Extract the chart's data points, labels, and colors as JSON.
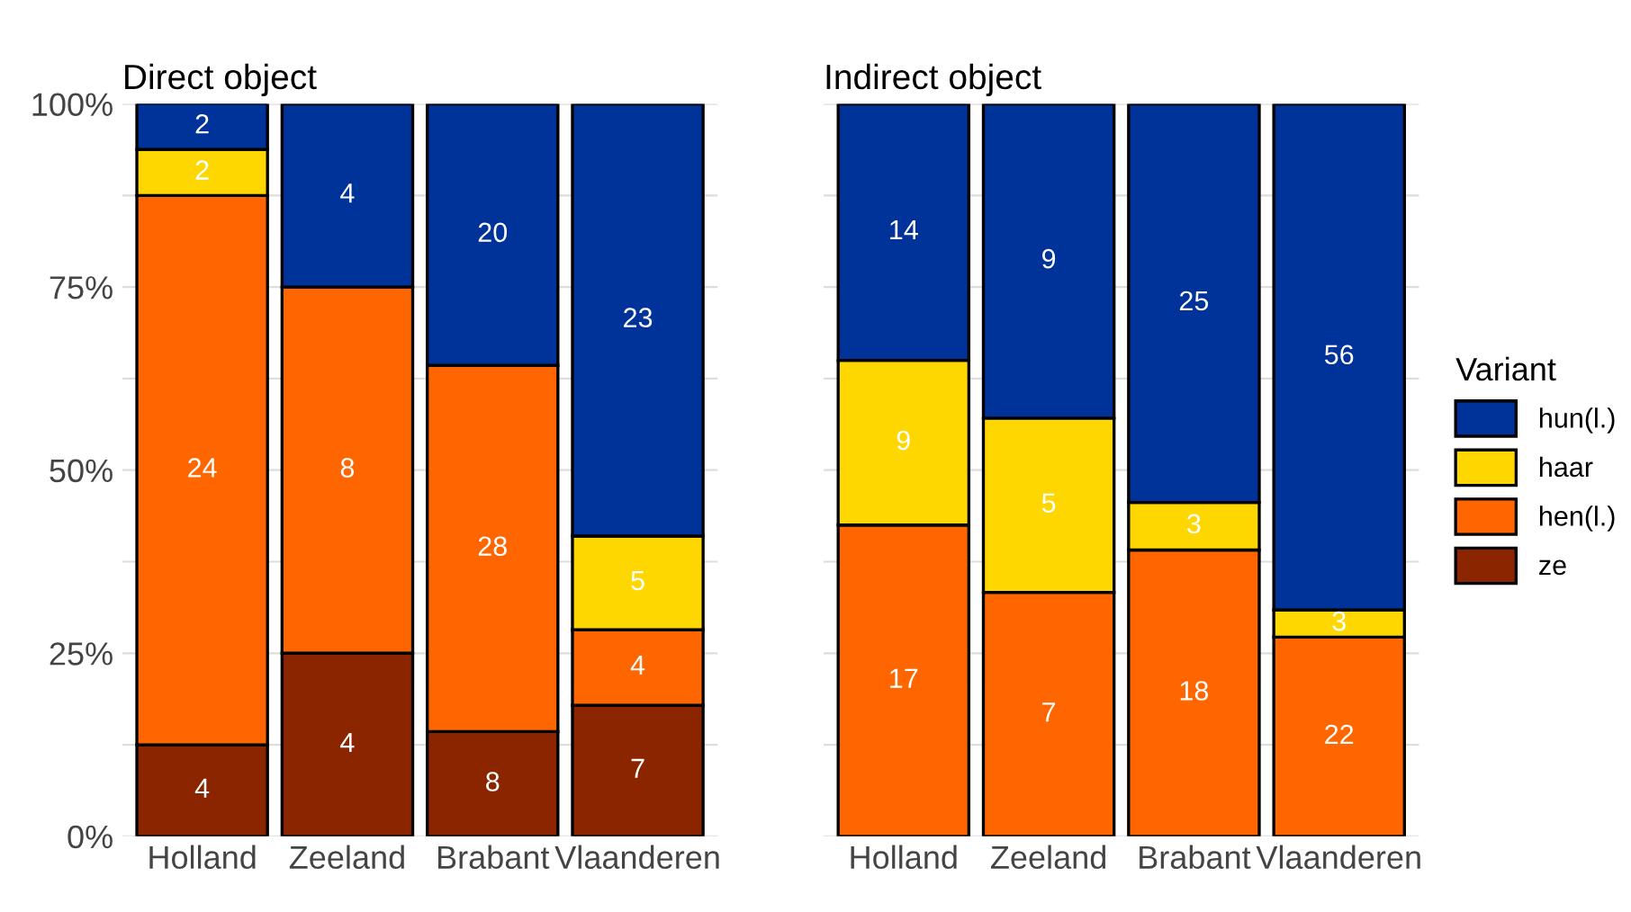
{
  "chart_data": [
    {
      "type": "bar",
      "title": "Direct object",
      "stacked": true,
      "categories": [
        "Holland",
        "Zeeland",
        "Brabant",
        "Vlaanderen"
      ],
      "ylim": [
        0,
        100
      ],
      "yticks": [
        {
          "value": 0,
          "label": "0%"
        },
        {
          "value": 12.5,
          "label": null
        },
        {
          "value": 25,
          "label": "25%"
        },
        {
          "value": 37.5,
          "label": null
        },
        {
          "value": 50,
          "label": "50%"
        },
        {
          "value": 62.5,
          "label": null
        },
        {
          "value": 75,
          "label": "75%"
        },
        {
          "value": 87.5,
          "label": null
        },
        {
          "value": 100,
          "label": "100%"
        }
      ],
      "grid": true,
      "series": [
        {
          "color": "#8b2500",
          "values": [
            12.5,
            25,
            14.3,
            17.9
          ]
        },
        {
          "color": "#ff6600",
          "values": [
            75,
            50,
            50,
            10.3
          ]
        },
        {
          "color": "#ffd700",
          "values": [
            6.3,
            null,
            null,
            12.8
          ]
        },
        {
          "color": "#003399",
          "values": [
            6.3,
            25,
            35.7,
            59.0
          ]
        }
      ],
      "annotations": [
        "4",
        "4",
        "8",
        "7",
        "24",
        "8",
        "28",
        "4",
        "2",
        "5",
        "2",
        "4",
        "20",
        "23"
      ]
    },
    {
      "type": "bar",
      "title": "Indirect object",
      "stacked": true,
      "categories": [
        "Holland",
        "Zeeland",
        "Brabant",
        "Vlaanderen"
      ],
      "ylim": [
        0,
        100
      ],
      "yticks": [
        {
          "value": 0,
          "label": null
        },
        {
          "value": 12.5,
          "label": null
        },
        {
          "value": 25,
          "label": null
        },
        {
          "value": 37.5,
          "label": null
        },
        {
          "value": 50,
          "label": null
        },
        {
          "value": 62.5,
          "label": null
        },
        {
          "value": 75,
          "label": null
        },
        {
          "value": 87.5,
          "label": null
        },
        {
          "value": 100,
          "label": null
        }
      ],
      "tick_labels": "x",
      "grid": true,
      "legend": "right",
      "legend_title": "Variant",
      "series": [
        {
          "name": "ze",
          "color": "#8b2500",
          "values": [
            null,
            null,
            null,
            null
          ]
        },
        {
          "name": "hen(l.)",
          "color": "#ff6600",
          "values": [
            42.5,
            33.3,
            39.1,
            27.2
          ]
        },
        {
          "name": "haar",
          "color": "#ffd700",
          "values": [
            22.5,
            23.8,
            6.5,
            3.7
          ]
        },
        {
          "name": "hun(l.)",
          "color": "#003399",
          "values": [
            35,
            42.9,
            54.4,
            69.1
          ]
        }
      ],
      "annotations": [
        "17",
        "7",
        "18",
        "22",
        "9",
        "5",
        "3",
        "3",
        "14",
        "9",
        "25",
        "56"
      ]
    }
  ]
}
